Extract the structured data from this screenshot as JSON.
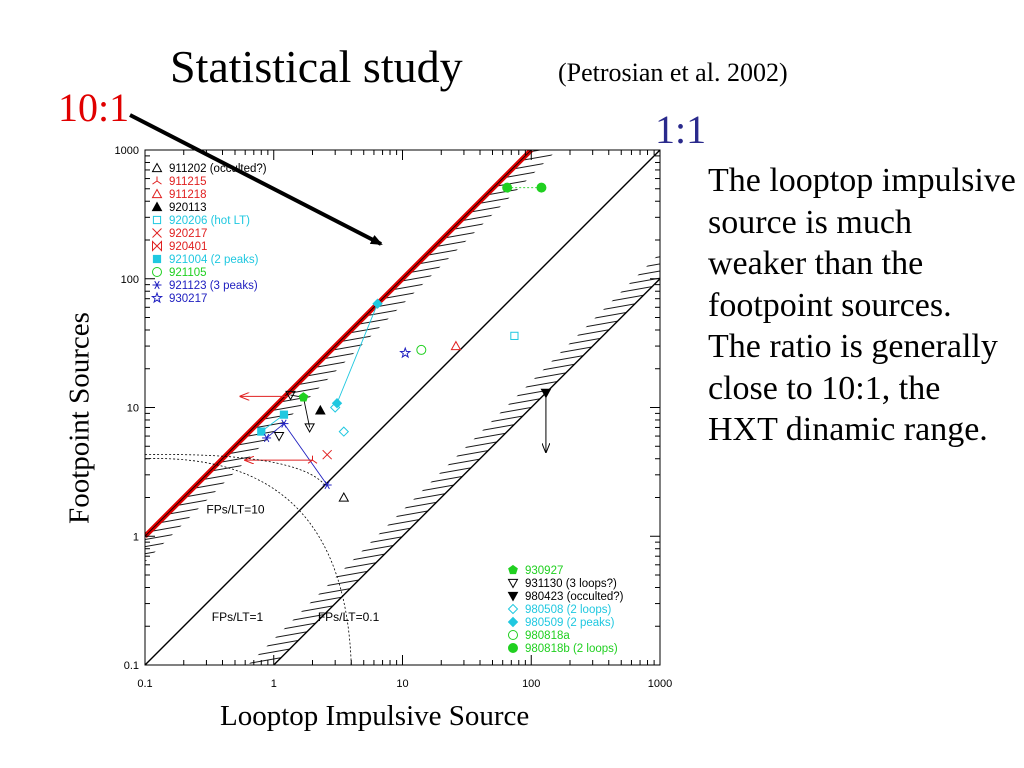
{
  "page": {
    "title": "Statistical study",
    "citation": "(Petrosian et al. 2002)",
    "ratio_label_10": "10:1",
    "ratio_label_1": "1:1",
    "description": [
      "The looptop impulsive source is much weaker than the footpoint sources.",
      "The ratio is generally close to 10:1, the HXT dinamic range."
    ],
    "colors": {
      "red_line": "#e00000",
      "ratio1": "#2a2a8c"
    }
  },
  "chart_data": {
    "type": "scatter",
    "xlabel": "Looptop Impulsive Source",
    "ylabel": "Footpoint Sources",
    "xscale": "log",
    "yscale": "log",
    "xlim": [
      0.1,
      1000
    ],
    "ylim": [
      0.1,
      1000
    ],
    "xticks": [
      0.1,
      1,
      10,
      100,
      1000
    ],
    "yticks": [
      0.1,
      1,
      10,
      100,
      1000
    ],
    "xtick_labels": [
      "0.1",
      "1",
      "10",
      "100",
      "1000"
    ],
    "ytick_labels": [
      "0.1",
      "1",
      "10",
      "100",
      "1000"
    ],
    "lines": [
      {
        "label": "FPs/LT=10",
        "ratio": 10
      },
      {
        "label": "FPs/LT=1",
        "ratio": 1
      },
      {
        "label": "FPs/LT=0.1",
        "ratio": 0.1
      }
    ],
    "legend_top_left": [
      {
        "label": "911202 (occulted?)",
        "color": "#000000",
        "marker": "triangle-open"
      },
      {
        "label": "911215",
        "color": "#e02020",
        "marker": "tri-star"
      },
      {
        "label": "911218",
        "color": "#e02020",
        "marker": "triangle-open"
      },
      {
        "label": "920113",
        "color": "#000000",
        "marker": "triangle-filled"
      },
      {
        "label": "920206 (hot LT)",
        "color": "#20c8e0",
        "marker": "square-open"
      },
      {
        "label": "920217",
        "color": "#e02020",
        "marker": "cross"
      },
      {
        "label": "920401",
        "color": "#e02020",
        "marker": "bowtie"
      },
      {
        "label": "921004 (2 peaks)",
        "color": "#20c8e0",
        "marker": "square-filled"
      },
      {
        "label": "921105",
        "color": "#20d020",
        "marker": "circle-open"
      },
      {
        "label": "921123 (3 peaks)",
        "color": "#2020c0",
        "marker": "asterisk"
      },
      {
        "label": "930217",
        "color": "#2020c0",
        "marker": "star-open"
      }
    ],
    "legend_bottom_right": [
      {
        "label": "930927",
        "color": "#20d020",
        "marker": "pentagon-filled"
      },
      {
        "label": "931130 (3 loops?)",
        "color": "#000000",
        "marker": "triangle-down-open"
      },
      {
        "label": "980423 (occulted?)",
        "color": "#000000",
        "marker": "triangle-down-filled"
      },
      {
        "label": "980508 (2 loops)",
        "color": "#20c8e0",
        "marker": "diamond-open"
      },
      {
        "label": "980509 (2 peaks)",
        "color": "#20c8e0",
        "marker": "diamond-filled"
      },
      {
        "label": "980818a",
        "color": "#20d020",
        "marker": "circle-open"
      },
      {
        "label": "980818b (2 loops)",
        "color": "#20d020",
        "marker": "circle-filled"
      }
    ],
    "points": [
      {
        "event": "911202",
        "x": 3.5,
        "y": 2.0,
        "color": "#000000",
        "marker": "triangle-open"
      },
      {
        "event": "911215",
        "x": 2.0,
        "y": 3.9,
        "color": "#e02020",
        "marker": "tri-star"
      },
      {
        "event": "911218",
        "x": 26,
        "y": 30,
        "color": "#e02020",
        "marker": "triangle-open"
      },
      {
        "event": "920113",
        "x": 2.3,
        "y": 9.5,
        "color": "#000000",
        "marker": "triangle-filled"
      },
      {
        "event": "920206",
        "x": 74,
        "y": 36,
        "color": "#20c8e0",
        "marker": "square-open"
      },
      {
        "event": "920217",
        "x": 2.6,
        "y": 4.3,
        "color": "#e02020",
        "marker": "cross"
      },
      {
        "event": "921004",
        "x": 0.8,
        "y": 6.5,
        "color": "#20c8e0",
        "marker": "square-filled"
      },
      {
        "event": "921004",
        "x": 1.2,
        "y": 8.8,
        "color": "#20c8e0",
        "marker": "square-filled"
      },
      {
        "event": "921105",
        "x": 14,
        "y": 28,
        "color": "#20d020",
        "marker": "circle-open"
      },
      {
        "event": "921123",
        "x": 0.88,
        "y": 5.8,
        "color": "#2020c0",
        "marker": "asterisk"
      },
      {
        "event": "921123",
        "x": 1.2,
        "y": 7.5,
        "color": "#2020c0",
        "marker": "asterisk"
      },
      {
        "event": "921123",
        "x": 2.6,
        "y": 2.5,
        "color": "#2020c0",
        "marker": "asterisk"
      },
      {
        "event": "930217",
        "x": 10.5,
        "y": 26.5,
        "color": "#2020c0",
        "marker": "star-open"
      },
      {
        "event": "930927",
        "x": 1.7,
        "y": 12,
        "color": "#20d020",
        "marker": "pentagon-filled"
      },
      {
        "event": "931130",
        "x": 1.35,
        "y": 12.5,
        "color": "#000000",
        "marker": "triangle-down-open"
      },
      {
        "event": "931130",
        "x": 1.1,
        "y": 6.0,
        "color": "#000000",
        "marker": "triangle-down-open"
      },
      {
        "event": "931130",
        "x": 1.9,
        "y": 7.0,
        "color": "#000000",
        "marker": "triangle-down-open"
      },
      {
        "event": "980423",
        "x": 130,
        "y": 13,
        "color": "#000000",
        "marker": "triangle-down-filled"
      },
      {
        "event": "980508",
        "x": 3.5,
        "y": 6.5,
        "color": "#20c8e0",
        "marker": "diamond-open"
      },
      {
        "event": "980508",
        "x": 3.0,
        "y": 10.0,
        "color": "#20c8e0",
        "marker": "diamond-open"
      },
      {
        "event": "980509",
        "x": 3.1,
        "y": 10.8,
        "color": "#20c8e0",
        "marker": "diamond-filled"
      },
      {
        "event": "980509",
        "x": 6.4,
        "y": 64,
        "color": "#20c8e0",
        "marker": "diamond-filled"
      },
      {
        "event": "980818b",
        "x": 65,
        "y": 510,
        "color": "#20d020",
        "marker": "circle-filled"
      },
      {
        "event": "980818b",
        "x": 120,
        "y": 510,
        "color": "#20d020",
        "marker": "circle-filled"
      }
    ],
    "connections": [
      {
        "from": [
          0.8,
          6.5
        ],
        "to": [
          1.2,
          8.8
        ],
        "color": "#20c8e0"
      },
      {
        "from": [
          0.88,
          5.8
        ],
        "to": [
          1.2,
          7.5
        ],
        "color": "#2020c0"
      },
      {
        "from": [
          1.2,
          7.5
        ],
        "to": [
          2.6,
          2.5
        ],
        "color": "#2020c0"
      },
      {
        "from": [
          3.1,
          10.8
        ],
        "to": [
          6.4,
          64
        ],
        "color": "#20c8e0"
      },
      {
        "from": [
          1.35,
          12.5
        ],
        "to": [
          1.7,
          12
        ],
        "color": "#000000"
      },
      {
        "from": [
          1.7,
          12
        ],
        "to": [
          1.9,
          7.0
        ],
        "color": "#000000"
      },
      {
        "from": [
          65,
          510
        ],
        "to": [
          120,
          510
        ],
        "color": "#20d020",
        "dashed": true
      }
    ],
    "upper_limit_arrows": [
      {
        "x": 130,
        "y_from": 13,
        "y_to": 4.5,
        "color": "#000000"
      }
    ],
    "left_limit_arrows": [
      {
        "x_from": 2.0,
        "x_to": 0.6,
        "y": 3.9,
        "color": "#e02020"
      },
      {
        "x_from": 1.3,
        "x_to": 0.55,
        "y": 12.2,
        "color": "#e02020"
      }
    ]
  }
}
